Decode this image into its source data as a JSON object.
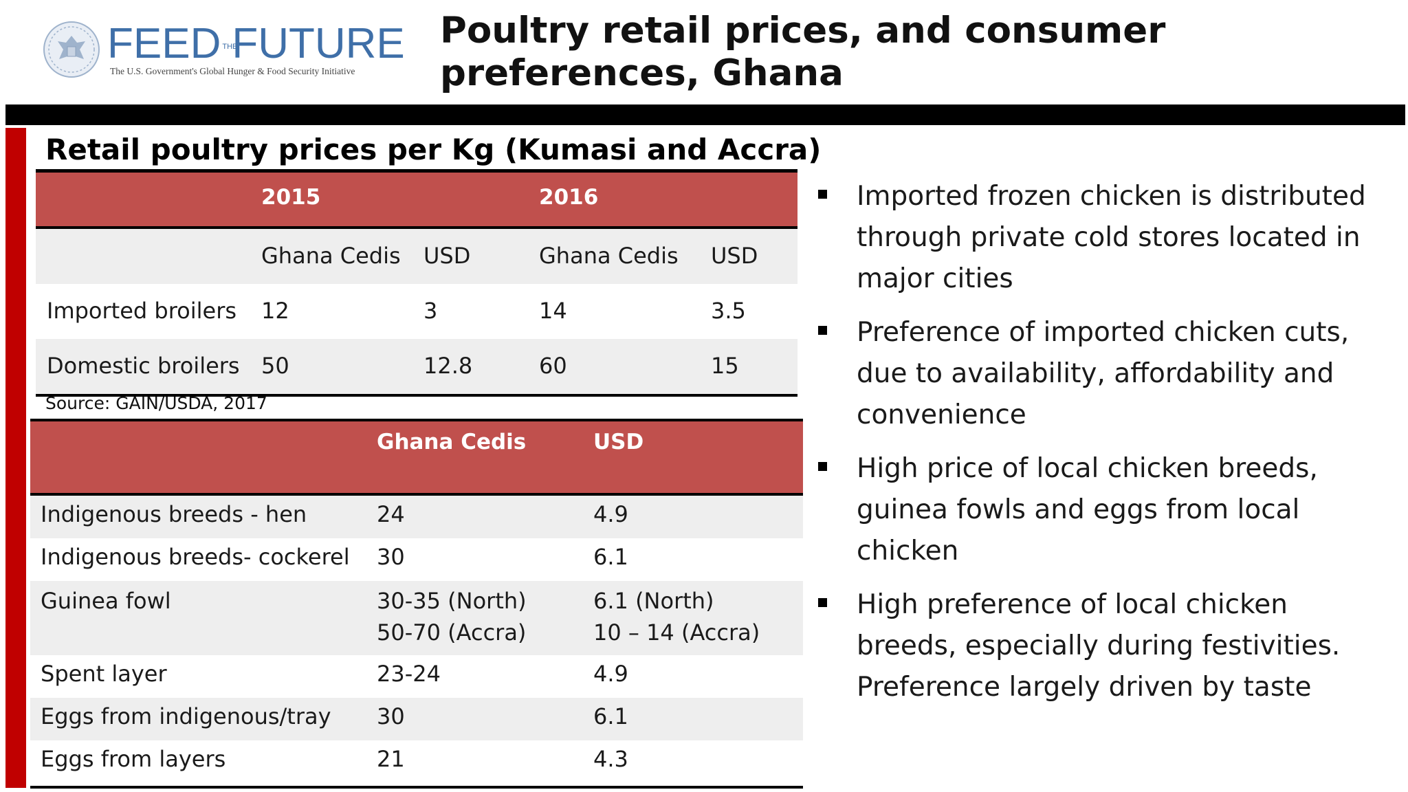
{
  "logo": {
    "wordmark_left": "FEED",
    "wordmark_the": "THE",
    "wordmark_right": "FUTURE",
    "tagline": "The U.S. Government's Global Hunger & Food Security Initiative"
  },
  "page_title": "Poultry retail prices, and consumer preferences, Ghana",
  "table1": {
    "heading": "Retail poultry prices per Kg (Kumasi and Accra)",
    "years": [
      "2015",
      "2016"
    ],
    "subheaders": [
      "Ghana Cedis",
      "USD",
      "Ghana Cedis",
      "USD"
    ],
    "rows": [
      {
        "label": "Imported broilers",
        "values": [
          "12",
          "3",
          "14",
          "3.5"
        ]
      },
      {
        "label": "Domestic broilers",
        "values": [
          "50",
          "12.8",
          "60",
          "15"
        ]
      }
    ],
    "source": "Source: GAIN/USDA, 2017"
  },
  "table2": {
    "headers": [
      "Ghana Cedis",
      "USD"
    ],
    "rows": [
      {
        "label": "Indigenous breeds - hen",
        "cedis": "24",
        "usd": "4.9"
      },
      {
        "label": "Indigenous breeds- cockerel",
        "cedis": "30",
        "usd": "6.1"
      },
      {
        "label": "Guinea fowl",
        "cedis": "30-35  (North)",
        "cedis2": "50-70 (Accra)",
        "usd": "6.1 (North)",
        "usd2": "10 – 14 (Accra)"
      },
      {
        "label": "Spent layer",
        "cedis": "23-24",
        "usd": "4.9"
      },
      {
        "label": "Eggs from indigenous/tray",
        "cedis": "30",
        "usd": "6.1"
      },
      {
        "label": "Eggs from layers",
        "cedis": "21",
        "usd": "4.3"
      }
    ]
  },
  "bullets": [
    "Imported frozen chicken is distributed through private cold stores located in major cities",
    "Preference of imported  chicken cuts, due to availability, affordability and convenience",
    "High price of local chicken breeds, guinea fowls and eggs from local chicken",
    "High preference of local chicken breeds, especially during festivities. Preference largely driven by taste"
  ],
  "colors": {
    "header_fill": "#c0504d",
    "row_shade": "#eeeeee",
    "accent_bar": "#c00000",
    "logo_blue": "#3f6fa8"
  }
}
